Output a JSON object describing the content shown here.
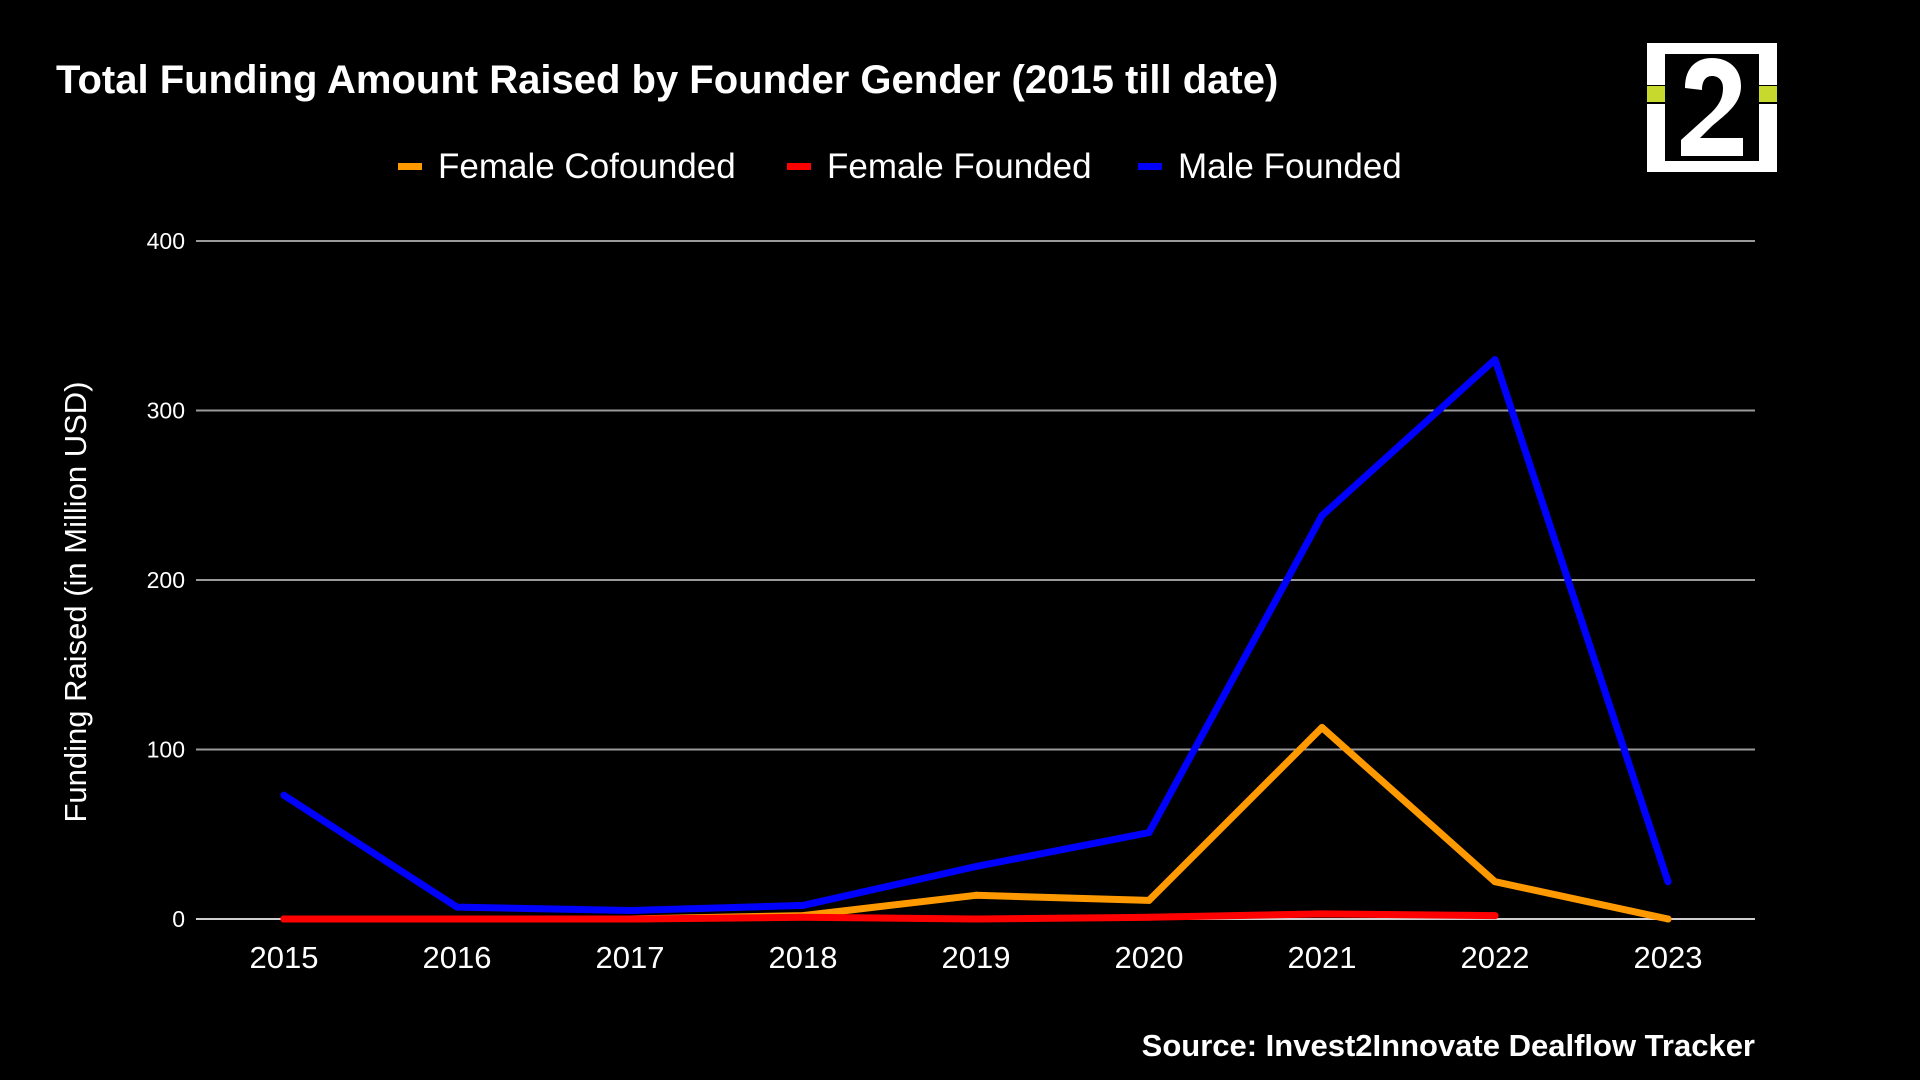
{
  "logo": {
    "text": "i2",
    "accent_color": "#c8d92e",
    "frame_color": "#ffffff"
  },
  "chart_data": {
    "type": "line",
    "title": "Total Funding Amount Raised by Founder Gender (2015 till date)",
    "xlabel": "",
    "ylabel": "Funding Raised (in Million USD)",
    "source": "Source: Invest2Innovate Dealflow Tracker",
    "categories": [
      "2015",
      "2016",
      "2017",
      "2018",
      "2019",
      "2020",
      "2021",
      "2022",
      "2023"
    ],
    "ylim": [
      0,
      400
    ],
    "yticks": [
      0,
      100,
      200,
      300,
      400
    ],
    "grid": true,
    "legend_position": "top",
    "background_color": "#000000",
    "series": [
      {
        "name": "Female Cofounded",
        "color": "#ff9900",
        "values": [
          0,
          0,
          0,
          2,
          14,
          11,
          113,
          22,
          0
        ]
      },
      {
        "name": "Female Founded",
        "color": "#ff0000",
        "values": [
          0,
          0,
          0,
          1,
          0,
          1,
          3,
          2,
          null
        ]
      },
      {
        "name": "Male Founded",
        "color": "#0000ff",
        "values": [
          73,
          7,
          5,
          8,
          31,
          51,
          238,
          330,
          22
        ]
      }
    ]
  }
}
